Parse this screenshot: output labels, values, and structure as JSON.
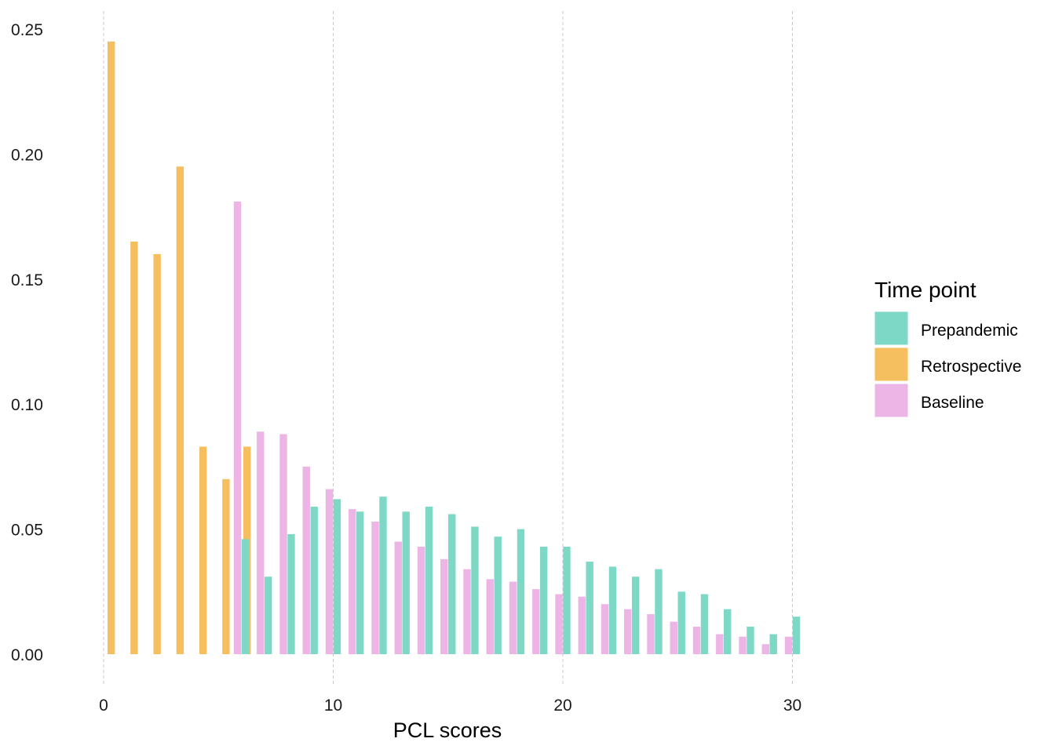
{
  "chart_data": {
    "type": "bar",
    "title": "",
    "xlabel": "PCL scores",
    "ylabel": "",
    "xlim": [
      -0.6,
      31.5
    ],
    "ylim": [
      -0.011,
      0.258
    ],
    "x_ticks": [
      "0",
      "10",
      "20",
      "30"
    ],
    "y_ticks": [
      "0.00",
      "0.05",
      "0.10",
      "0.15",
      "0.20",
      "0.25"
    ],
    "grid": "vertical dashed at major x ticks",
    "legend": {
      "title": "Time point",
      "position": "right"
    },
    "series": [
      {
        "name": "Prepandemic",
        "color": "#7DD9C6",
        "x": [
          6,
          7,
          8,
          9,
          10,
          11,
          12,
          13,
          14,
          15,
          16,
          17,
          18,
          19,
          20,
          21,
          22,
          23,
          24,
          25,
          26,
          27,
          28,
          29,
          30
        ],
        "values": [
          0.046,
          0.031,
          0.048,
          0.059,
          0.062,
          0.057,
          0.063,
          0.057,
          0.059,
          0.056,
          0.051,
          0.047,
          0.05,
          0.043,
          0.043,
          0.037,
          0.035,
          0.031,
          0.034,
          0.025,
          0.024,
          0.018,
          0.011,
          0.008,
          0.015
        ]
      },
      {
        "name": "Retrospective",
        "color": "#F5BE5E",
        "x": [
          0,
          1,
          2,
          3,
          4,
          5,
          6
        ],
        "values": [
          0.245,
          0.165,
          0.16,
          0.195,
          0.083,
          0.07,
          0.083
        ]
      },
      {
        "name": "Baseline",
        "color": "#EDB5E6",
        "x": [
          6,
          7,
          8,
          9,
          10,
          11,
          12,
          13,
          14,
          15,
          16,
          17,
          18,
          19,
          20,
          21,
          22,
          23,
          24,
          25,
          26,
          27,
          28,
          29,
          30
        ],
        "values": [
          0.181,
          0.089,
          0.088,
          0.075,
          0.066,
          0.058,
          0.053,
          0.045,
          0.043,
          0.038,
          0.034,
          0.03,
          0.029,
          0.026,
          0.024,
          0.023,
          0.02,
          0.018,
          0.016,
          0.013,
          0.011,
          0.008,
          0.007,
          0.004,
          0.007
        ]
      }
    ]
  }
}
